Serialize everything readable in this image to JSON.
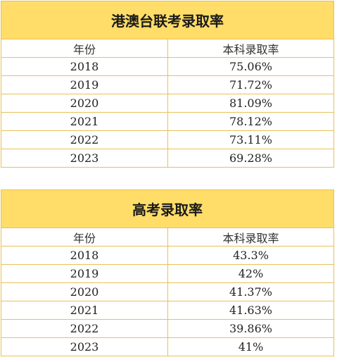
{
  "tables": [
    {
      "title": "港澳台联考录取率",
      "headers": [
        "年份",
        "本科录取率"
      ],
      "rows": [
        {
          "year": "2018",
          "rate": "75.06%"
        },
        {
          "year": "2019",
          "rate": "71.72%"
        },
        {
          "year": "2020",
          "rate": "81.09%"
        },
        {
          "year": "2021",
          "rate": "78.12%"
        },
        {
          "year": "2022",
          "rate": "73.11%"
        },
        {
          "year": "2023",
          "rate": "69.28%"
        }
      ]
    },
    {
      "title": "高考录取率",
      "headers": [
        "年份",
        "本科录取率"
      ],
      "rows": [
        {
          "year": "2018",
          "rate": "43.3%"
        },
        {
          "year": "2019",
          "rate": "42%"
        },
        {
          "year": "2020",
          "rate": "41.37%"
        },
        {
          "year": "2021",
          "rate": "41.63%"
        },
        {
          "year": "2022",
          "rate": "39.86%"
        },
        {
          "year": "2023",
          "rate": "41%"
        }
      ]
    }
  ]
}
